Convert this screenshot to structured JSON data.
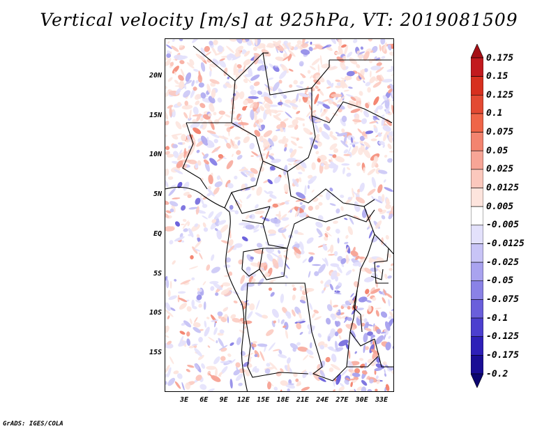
{
  "title": "Vertical velocity [m/s] at 925hPa, VT: 2019081509",
  "credit": "GrADS: IGES/COLA",
  "lat_labels": [
    "20N",
    "15N",
    "10N",
    "5N",
    "EQ",
    "5S",
    "10S",
    "15S"
  ],
  "lon_labels": [
    "3E",
    "6E",
    "9E",
    "12E",
    "15E",
    "18E",
    "21E",
    "24E",
    "27E",
    "30E",
    "33E"
  ],
  "colorbar": {
    "labels": [
      "0.175",
      "0.15",
      "0.125",
      "0.1",
      "0.075",
      "0.05",
      "0.025",
      "0.0125",
      "0.005",
      "-0.005",
      "-0.0125",
      "-0.025",
      "-0.05",
      "-0.075",
      "-0.1",
      "-0.125",
      "-0.175",
      "-0.2"
    ],
    "colors": [
      "#a50f15",
      "#c21a1e",
      "#d7301f",
      "#e34a33",
      "#ef6548",
      "#f3846f",
      "#f7a596",
      "#fbc8bd",
      "#fde4dd",
      "#ffffff",
      "#e3e1fb",
      "#c8c4f6",
      "#a9a3ef",
      "#8a82e6",
      "#6a5fdb",
      "#4c3fcf",
      "#2e20b8",
      "#1a0e95",
      "#0c0670"
    ]
  }
}
